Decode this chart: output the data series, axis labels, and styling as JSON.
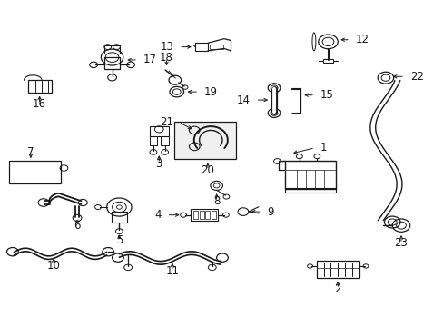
{
  "background_color": "#ffffff",
  "figure_width": 4.89,
  "figure_height": 3.6,
  "dpi": 100,
  "line_color": "#1a1a1a",
  "label_fontsize": 8.5,
  "parts_labels": {
    "1": [
      0.735,
      0.535,
      0.735,
      0.57,
      "center"
    ],
    "2": [
      0.76,
      0.148,
      0.76,
      0.108,
      "center"
    ],
    "3": [
      0.358,
      0.598,
      0.358,
      0.638,
      "center"
    ],
    "4": [
      0.478,
      0.342,
      0.515,
      0.342,
      "left"
    ],
    "5": [
      0.268,
      0.31,
      0.268,
      0.27,
      "center"
    ],
    "6": [
      0.148,
      0.338,
      0.148,
      0.298,
      "center"
    ],
    "7": [
      0.148,
      0.538,
      0.148,
      0.578,
      "center"
    ],
    "8": [
      0.488,
      0.415,
      0.488,
      0.455,
      "center"
    ],
    "9": [
      0.558,
      0.348,
      0.595,
      0.348,
      "left"
    ],
    "10": [
      0.128,
      0.218,
      0.128,
      0.178,
      "center"
    ],
    "11": [
      0.418,
      0.188,
      0.418,
      0.148,
      "center"
    ],
    "12": [
      0.758,
      0.878,
      0.798,
      0.878,
      "left"
    ],
    "13": [
      0.438,
      0.858,
      0.398,
      0.858,
      "right"
    ],
    "14": [
      0.588,
      0.718,
      0.548,
      0.718,
      "right"
    ],
    "15": [
      0.668,
      0.718,
      0.708,
      0.718,
      "left"
    ],
    "16": [
      0.088,
      0.718,
      0.088,
      0.678,
      "center"
    ],
    "17": [
      0.268,
      0.808,
      0.308,
      0.808,
      "left"
    ],
    "18": [
      0.388,
      0.778,
      0.388,
      0.818,
      "center"
    ],
    "19": [
      0.398,
      0.728,
      0.438,
      0.728,
      "left"
    ],
    "20": [
      0.468,
      0.548,
      0.468,
      0.508,
      "center"
    ],
    "21": [
      0.418,
      0.618,
      0.378,
      0.648,
      "right"
    ],
    "22": [
      0.858,
      0.748,
      0.898,
      0.748,
      "left"
    ],
    "23": [
      0.908,
      0.318,
      0.908,
      0.278,
      "center"
    ]
  }
}
